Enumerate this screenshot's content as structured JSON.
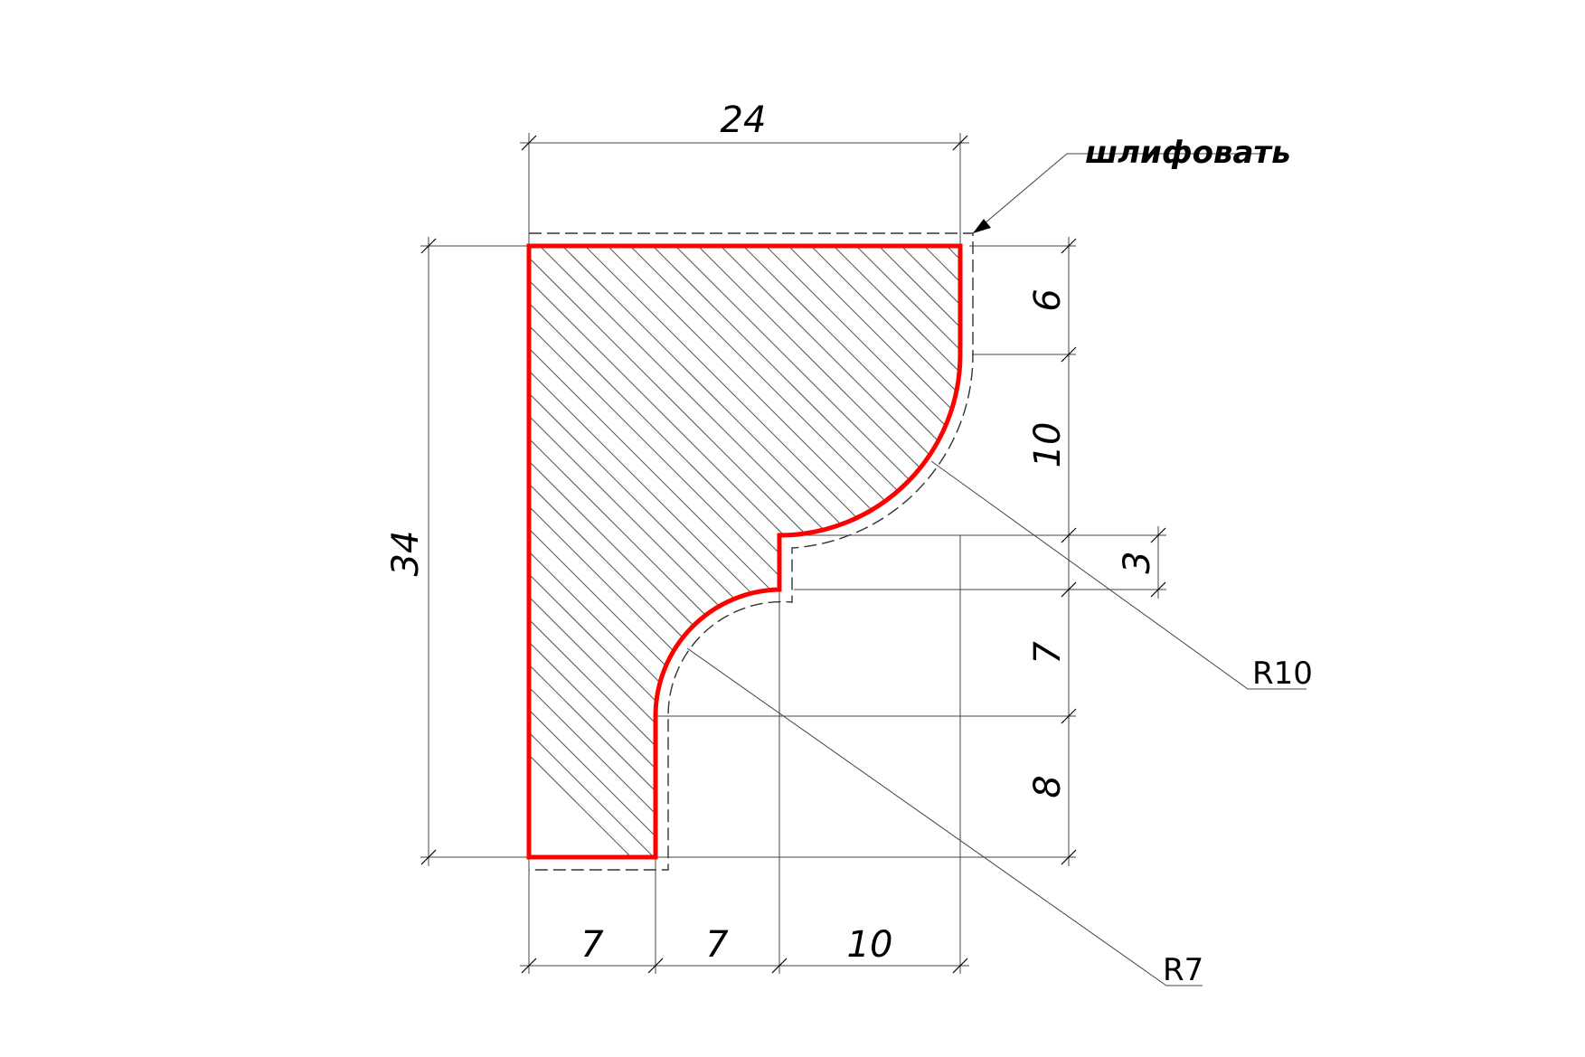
{
  "profile": {
    "outline_color": "#ff0000",
    "hatch_color": "#555555"
  },
  "dimensions": {
    "overall_width": "24",
    "overall_height": "34",
    "right_6": "6",
    "right_10": "10",
    "right_3": "3",
    "right_7": "7",
    "right_8": "8",
    "bottom_7a": "7",
    "bottom_7b": "7",
    "bottom_10": "10"
  },
  "callouts": {
    "grind_note": "шлифовать",
    "radius_large": "R10",
    "radius_small": "R7"
  }
}
